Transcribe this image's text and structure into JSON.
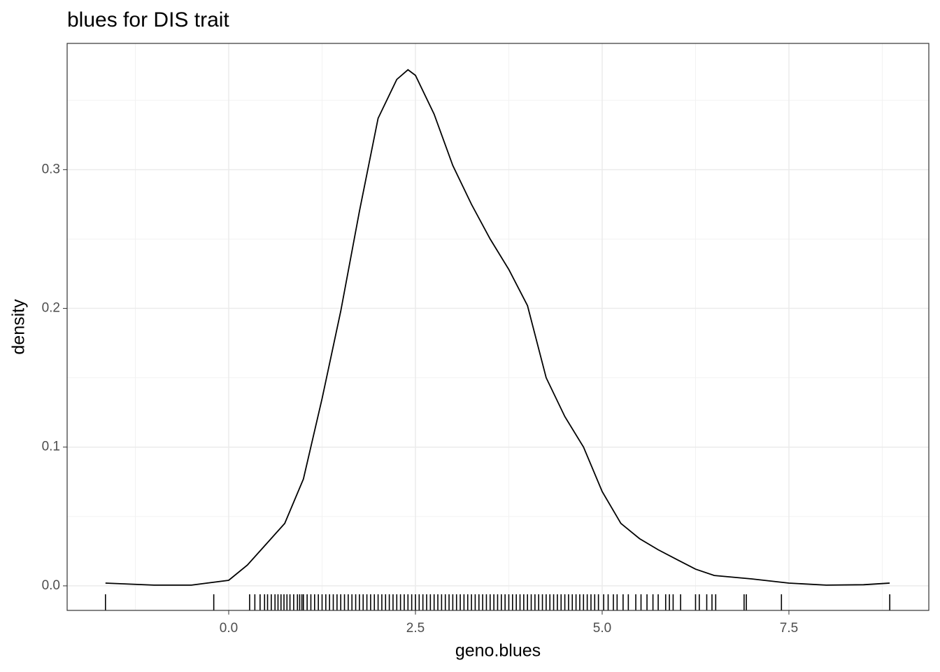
{
  "chart_data": {
    "type": "density",
    "title": "blues for DIS trait",
    "x_label": "geno.blues",
    "y_label": "density",
    "x": [
      -1.65,
      -1.0,
      -0.5,
      0.0,
      0.25,
      0.5,
      0.75,
      1.0,
      1.25,
      1.5,
      1.75,
      2.0,
      2.25,
      2.4,
      2.5,
      2.75,
      3.0,
      3.25,
      3.5,
      3.75,
      4.0,
      4.25,
      4.5,
      4.75,
      5.0,
      5.25,
      5.5,
      5.75,
      6.0,
      6.25,
      6.5,
      7.0,
      7.5,
      8.0,
      8.5,
      8.85
    ],
    "y": [
      0.002,
      0.0005,
      0.0005,
      0.004,
      0.015,
      0.03,
      0.045,
      0.077,
      0.135,
      0.198,
      0.27,
      0.337,
      0.365,
      0.372,
      0.368,
      0.34,
      0.303,
      0.275,
      0.25,
      0.228,
      0.202,
      0.15,
      0.122,
      0.1,
      0.068,
      0.045,
      0.034,
      0.026,
      0.019,
      0.012,
      0.0075,
      0.005,
      0.002,
      0.0005,
      0.0008,
      0.002
    ],
    "rug": [
      -1.65,
      -0.2,
      0.28,
      0.35,
      0.42,
      0.48,
      0.52,
      0.57,
      0.62,
      0.66,
      0.7,
      0.74,
      0.78,
      0.82,
      0.87,
      0.92,
      0.95,
      0.98,
      1.0,
      1.05,
      1.1,
      1.15,
      1.2,
      1.25,
      1.3,
      1.35,
      1.4,
      1.45,
      1.5,
      1.55,
      1.6,
      1.65,
      1.7,
      1.75,
      1.8,
      1.85,
      1.9,
      1.95,
      2.0,
      2.05,
      2.1,
      2.15,
      2.2,
      2.25,
      2.3,
      2.35,
      2.4,
      2.45,
      2.5,
      2.55,
      2.6,
      2.65,
      2.7,
      2.75,
      2.8,
      2.85,
      2.9,
      2.95,
      3.0,
      3.05,
      3.1,
      3.15,
      3.2,
      3.25,
      3.3,
      3.35,
      3.4,
      3.45,
      3.5,
      3.55,
      3.6,
      3.65,
      3.7,
      3.75,
      3.8,
      3.85,
      3.9,
      3.95,
      4.0,
      4.05,
      4.1,
      4.15,
      4.2,
      4.25,
      4.3,
      4.35,
      4.4,
      4.45,
      4.5,
      4.55,
      4.6,
      4.65,
      4.7,
      4.75,
      4.8,
      4.85,
      4.9,
      4.95,
      5.02,
      5.08,
      5.15,
      5.2,
      5.28,
      5.35,
      5.45,
      5.52,
      5.6,
      5.68,
      5.75,
      5.85,
      5.9,
      5.95,
      6.05,
      6.25,
      6.3,
      6.4,
      6.47,
      6.52,
      6.9,
      6.93,
      7.4,
      8.85
    ],
    "xlim": [
      -2.163,
      9.373
    ],
    "ylim": [
      -0.0177,
      0.391
    ],
    "xticks": [
      {
        "value": 0,
        "label": "0.0"
      },
      2.5,
      {
        "value": 5,
        "label": "5.0"
      },
      7.5
    ],
    "yticks": [
      {
        "value": 0,
        "label": "0.0"
      },
      0.1,
      0.2,
      0.3
    ],
    "xminor": [
      -1.25,
      1.25,
      3.75,
      6.25,
      8.75
    ],
    "yminor": [
      0.05,
      0.15,
      0.25,
      0.35
    ],
    "color": "#000000",
    "grid": true
  }
}
